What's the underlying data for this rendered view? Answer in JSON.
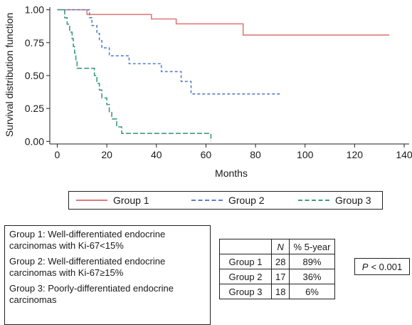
{
  "chart_data": {
    "type": "line",
    "subtype": "kaplan-meier step",
    "ylabel": "Survival distribution function",
    "xlabel": "Months",
    "xlim": [
      -3,
      142
    ],
    "ylim": [
      -0.02,
      1.02
    ],
    "x_ticks": [
      0,
      20,
      40,
      60,
      80,
      100,
      120,
      140
    ],
    "y_ticks": [
      "0.00",
      "0.25",
      "0.50",
      "0.75",
      "1.00"
    ],
    "series": [
      {
        "name": "Group 1",
        "color": "#e07a7a",
        "dash": "solid",
        "steps": [
          [
            0,
            1.0
          ],
          [
            12,
            0.964
          ],
          [
            38,
            0.93
          ],
          [
            48,
            0.893
          ],
          [
            75,
            0.808
          ],
          [
            134,
            0.808
          ]
        ]
      },
      {
        "name": "Group 2",
        "color": "#5b7fc7",
        "dash": "short-dash",
        "steps": [
          [
            0,
            1.0
          ],
          [
            13,
            0.94
          ],
          [
            14,
            0.88
          ],
          [
            16,
            0.82
          ],
          [
            17,
            0.765
          ],
          [
            18,
            0.71
          ],
          [
            21,
            0.65
          ],
          [
            29,
            0.59
          ],
          [
            42,
            0.53
          ],
          [
            50,
            0.455
          ],
          [
            54,
            0.36
          ],
          [
            90,
            0.36
          ]
        ]
      },
      {
        "name": "Group 3",
        "color": "#3f9c78",
        "dash": "long-dash",
        "steps": [
          [
            0,
            1.0
          ],
          [
            3,
            0.94
          ],
          [
            4,
            0.89
          ],
          [
            5,
            0.83
          ],
          [
            6,
            0.78
          ],
          [
            6.5,
            0.72
          ],
          [
            7,
            0.67
          ],
          [
            7.5,
            0.61
          ],
          [
            8,
            0.555
          ],
          [
            15,
            0.5
          ],
          [
            16,
            0.44
          ],
          [
            17,
            0.39
          ],
          [
            18,
            0.33
          ],
          [
            20,
            0.28
          ],
          [
            21,
            0.22
          ],
          [
            22,
            0.17
          ],
          [
            24,
            0.11
          ],
          [
            26,
            0.06
          ],
          [
            62,
            0.06
          ],
          [
            62,
            0.0
          ]
        ]
      }
    ]
  },
  "legend": {
    "items": [
      {
        "label": "Group 1",
        "color": "#e07a7a",
        "dash": "solid"
      },
      {
        "label": "Group 2",
        "color": "#5b7fc7",
        "dash": "dashed"
      },
      {
        "label": "Group 3",
        "color": "#3f9c78",
        "dashed": true,
        "dash": "dashed"
      }
    ]
  },
  "notes": [
    "Group 1: Well-differentiated endocrine carcinomas with Ki-67<15%",
    "Group 2: Well-differentiated endocrine carcinomas with Ki-67≥15%",
    "Group 3: Poorly-differentiated endocrine carcinomas"
  ],
  "stats_table": {
    "headers": [
      "",
      "N",
      "% 5-year"
    ],
    "rows": [
      [
        "Group 1",
        "28",
        "89%"
      ],
      [
        "Group 2",
        "17",
        "36%"
      ],
      [
        "Group 3",
        "18",
        "6%"
      ]
    ]
  },
  "p_value": {
    "label": "P",
    "text": " < 0.001"
  }
}
